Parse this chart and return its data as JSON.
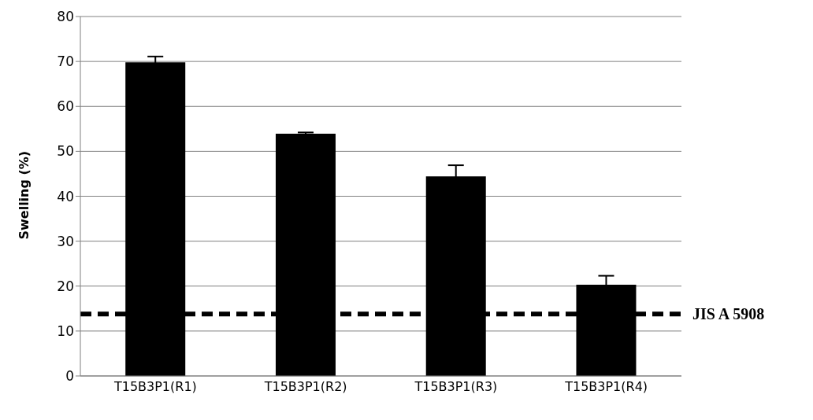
{
  "chart_data": {
    "type": "bar",
    "ylabel": "Swelling (%)",
    "categories": [
      "T15B3P1(R1)",
      "T15B3P1(R2)",
      "T15B3P1(R3)",
      "T15B3P1(R4)"
    ],
    "values": [
      69.8,
      53.9,
      44.4,
      20.3
    ],
    "errors": [
      1.3,
      0.3,
      2.5,
      2
    ],
    "color": "#000000",
    "ylim": [
      0,
      80
    ],
    "yticks": [
      0,
      10,
      20,
      30,
      40,
      50,
      60,
      70,
      80
    ],
    "grid": "y",
    "ref_lines": [
      {
        "axis": "y",
        "value": 13.8,
        "label": "JIS A 5908",
        "color": "#000000",
        "line_style": "dashed"
      }
    ]
  }
}
